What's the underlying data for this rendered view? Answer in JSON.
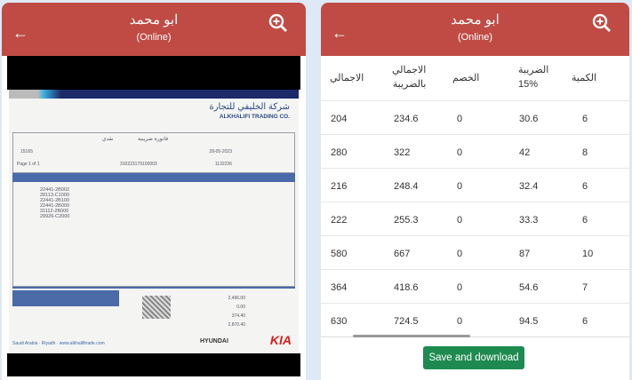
{
  "header": {
    "title": "ابو محمد",
    "status": "(Online)"
  },
  "invoice": {
    "company_ar": "شركة الخليفي للتجارة",
    "company_en": "ALKHALIFI TRADING CO.",
    "doc_type": "فاتورة ضريبية",
    "payment": "نقدي",
    "date": "28-05-2023",
    "customer_number": "1132236",
    "invoice_no": "15165",
    "page": "Page 1 of 1",
    "vat_no": "310223179100003",
    "parts": [
      "22441-2B002",
      "28113-C1000",
      "22441-2B100",
      "22441-2B000",
      "31112-2B000",
      "29926-C2000"
    ],
    "total": "2,496.00",
    "discount": "0.00",
    "vat": "374.40",
    "grand_total": "2,870.40",
    "website": "Saudi Arabia · Riyadh · www.alkhalifitrade.com",
    "brands": [
      "HYUNDAI",
      "KIA"
    ]
  },
  "table": {
    "headers": {
      "qty": "الكمية",
      "tax": "الضريبة",
      "tax_rate": "15%",
      "discount": "الخصم",
      "total_with_tax": "الاجمالي",
      "total_with_tax_2": "بالضريبة",
      "total": "الاجمالي"
    },
    "rows": [
      {
        "total": "204",
        "total_with_tax": "234.6",
        "discount": "0",
        "tax": "30.6",
        "qty": "6"
      },
      {
        "total": "280",
        "total_with_tax": "322",
        "discount": "0",
        "tax": "42",
        "qty": "8"
      },
      {
        "total": "216",
        "total_with_tax": "248.4",
        "discount": "0",
        "tax": "32.4",
        "qty": "6"
      },
      {
        "total": "222",
        "total_with_tax": "255.3",
        "discount": "0",
        "tax": "33.3",
        "qty": "6"
      },
      {
        "total": "580",
        "total_with_tax": "667",
        "discount": "0",
        "tax": "87",
        "qty": "10"
      },
      {
        "total": "364",
        "total_with_tax": "418.6",
        "discount": "0",
        "tax": "54.6",
        "qty": "7"
      },
      {
        "total": "630",
        "total_with_tax": "724.5",
        "discount": "0",
        "tax": "94.5",
        "qty": "6"
      }
    ]
  },
  "save_button": "Save and download",
  "colors": {
    "header": "#c04b45",
    "button": "#1e8a50"
  }
}
